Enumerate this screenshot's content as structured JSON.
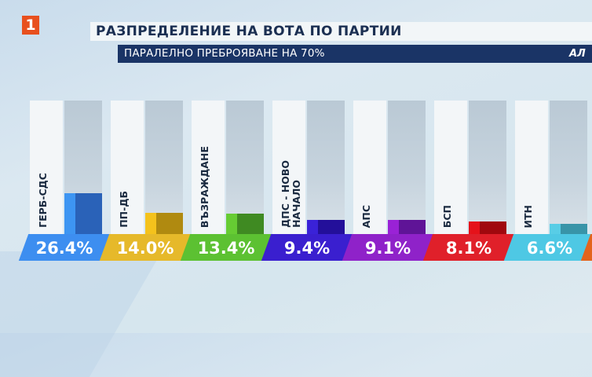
{
  "header": {
    "channel_logo": "1",
    "title": "РАЗПРЕДЕЛЕНИЕ НА ВОТА ПО ПАРТИИ",
    "subtitle": "ПАРАЛЕЛНО ПРЕБРОЯВАНЕ НА 70%",
    "brand": "АЛ"
  },
  "colors": {
    "title_text": "#1b2f52",
    "subtitle_bg": "#1a3466",
    "logo_bg": "#e8501e"
  },
  "chart_data": {
    "type": "bar",
    "title": "РАЗПРЕДЕЛЕНИЕ НА ВОТА ПО ПАРТИИ",
    "subtitle": "ПАРАЛЕЛНО ПРЕБРОЯВАНЕ НА 70%",
    "categories": [
      "ГЕРБ-СДС",
      "ПП-ДБ",
      "ВЪЗРАЖДАНЕ",
      "ДПС - НОВО НАЧАЛО",
      "АПС",
      "БСП",
      "ИТН"
    ],
    "values": [
      26.4,
      14.0,
      13.4,
      9.4,
      9.1,
      8.1,
      6.6
    ],
    "value_labels": [
      "26.4%",
      "14.0%",
      "13.4%",
      "9.4%",
      "9.1%",
      "8.1%",
      "6.6%"
    ],
    "colors": [
      "#3d8ef0",
      "#e6b92a",
      "#5cc132",
      "#3a1fcf",
      "#8f22c9",
      "#e0202a",
      "#4ec8e4"
    ],
    "unit": "%",
    "ylim": [
      0,
      100
    ],
    "grid": false,
    "legend": "none",
    "truncated_right": "additional orange column partially visible"
  },
  "bars": [
    {
      "label": "ГЕРБ-СДС",
      "pct": "26.4%",
      "h": 52,
      "c1": "#3d95f2",
      "c2": "#2a62b8",
      "pill": "#3d8ef0"
    },
    {
      "label": "ПП-ДБ",
      "pct": "14.0%",
      "h": 27,
      "c1": "#f4c21c",
      "c2": "#b08a10",
      "pill": "#e6b92a"
    },
    {
      "label": "ВЪЗРАЖДАНЕ",
      "pct": "13.4%",
      "h": 26,
      "c1": "#66cc33",
      "c2": "#3f8a22",
      "pill": "#5cc132"
    },
    {
      "label": "ДПС - НОВО\nНАЧАЛО",
      "pct": "9.4%",
      "h": 18,
      "c1": "#3a22d8",
      "c2": "#230f9a",
      "pill": "#3a1fcf"
    },
    {
      "label": "АПС",
      "pct": "9.1%",
      "h": 18,
      "c1": "#9a22d6",
      "c2": "#5f1497",
      "pill": "#8f22c9"
    },
    {
      "label": "БСП",
      "pct": "8.1%",
      "h": 16,
      "c1": "#e5121a",
      "c2": "#a0080e",
      "pill": "#e0202a"
    },
    {
      "label": "ИТН",
      "pct": "6.6%",
      "h": 13,
      "c1": "#58cde6",
      "c2": "#3894a8",
      "pill": "#4ec8e4"
    }
  ]
}
